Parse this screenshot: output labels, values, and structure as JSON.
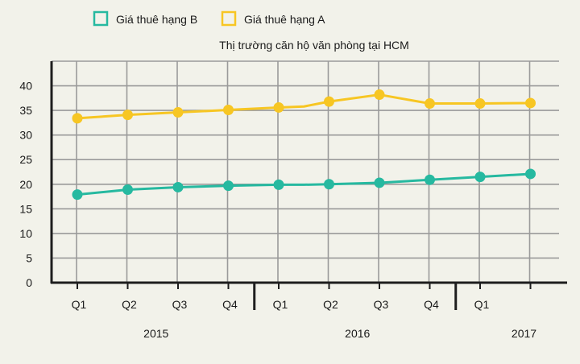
{
  "chart_data": {
    "type": "line",
    "title": "Thị trường căn hộ văn phòng tại HCM",
    "xlabel": "",
    "ylabel": "",
    "ylim": [
      0,
      45
    ],
    "yticks": [
      "0",
      "5",
      "10",
      "15",
      "20",
      "25",
      "30",
      "35",
      "40"
    ],
    "grid": true,
    "legend_position": "top-left",
    "quarters": [
      "Q1",
      "Q2",
      "Q3",
      "Q4",
      "Q1",
      "Q2",
      "Q3",
      "Q4",
      "Q1"
    ],
    "years": [
      {
        "label": "2015",
        "start": 0,
        "end": 3
      },
      {
        "label": "2016",
        "start": 4,
        "end": 7
      },
      {
        "label": "2017",
        "start": 8,
        "end": 9
      }
    ],
    "x_points": [
      0,
      1,
      2,
      3,
      4,
      4.5,
      5,
      6,
      7,
      8,
      9
    ],
    "series": [
      {
        "name": "Giá thuê hạng B",
        "color": "#26b9a0",
        "values": [
          17.9,
          18.9,
          19.4,
          19.7,
          19.9,
          19.9,
          20.0,
          20.3,
          20.9,
          21.5,
          22.1
        ],
        "markers": [
          true,
          true,
          true,
          true,
          true,
          false,
          true,
          true,
          true,
          true,
          true
        ]
      },
      {
        "name": "Giá thuê hạng A",
        "color": "#f7c623",
        "values": [
          33.4,
          34.1,
          34.6,
          35.1,
          35.6,
          35.8,
          36.8,
          38.2,
          36.4,
          36.4,
          36.5
        ],
        "markers": [
          true,
          true,
          true,
          true,
          true,
          false,
          true,
          true,
          true,
          true,
          true
        ]
      }
    ]
  }
}
